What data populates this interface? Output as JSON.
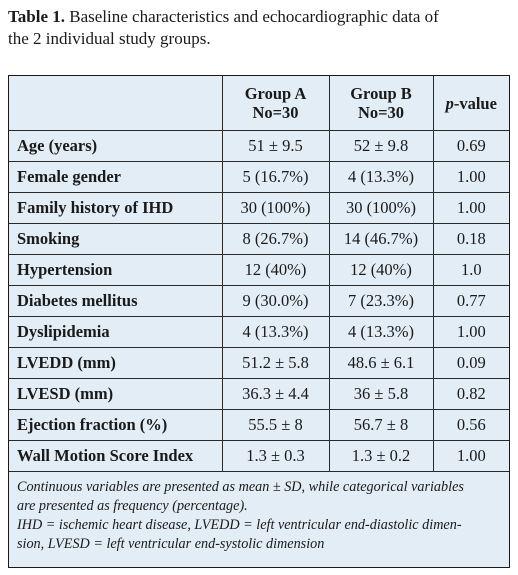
{
  "caption": {
    "label": "Table 1.",
    "text_line1": " Baseline characteristics and echocardiographic data of",
    "text_line2": "the 2 individual study groups."
  },
  "table": {
    "headers": {
      "group_a_line1": "Group A",
      "group_a_line2": "No=30",
      "group_b_line1": "Group B",
      "group_b_line2": "No=30",
      "pvalue_p": "p",
      "pvalue_rest": "-value"
    },
    "rows": [
      {
        "name": "Age (years)",
        "a": "51 ± 9.5",
        "b": "52 ± 9.8",
        "p": "0.69"
      },
      {
        "name": "Female gender",
        "a": "5 (16.7%)",
        "b": "4 (13.3%)",
        "p": "1.00"
      },
      {
        "name": "Family history of IHD",
        "a": "30 (100%)",
        "b": "30 (100%)",
        "p": "1.00"
      },
      {
        "name": "Smoking",
        "a": "8 (26.7%)",
        "b": "14 (46.7%)",
        "p": "0.18"
      },
      {
        "name": "Hypertension",
        "a": "12 (40%)",
        "b": "12 (40%)",
        "p": "1.0"
      },
      {
        "name": "Diabetes mellitus",
        "a": "9 (30.0%)",
        "b": "7 (23.3%)",
        "p": "0.77"
      },
      {
        "name": "Dyslipidemia",
        "a": "4 (13.3%)",
        "b": "4 (13.3%)",
        "p": "1.00"
      },
      {
        "name": "LVEDD (mm)",
        "a": "51.2 ± 5.8",
        "b": "48.6 ± 6.1",
        "p": "0.09"
      },
      {
        "name": "LVESD (mm)",
        "a": "36.3 ± 4.4",
        "b": "36 ± 5.8",
        "p": "0.82"
      },
      {
        "name": "Ejection fraction (%)",
        "a": "55.5 ± 8",
        "b": "56.7 ± 8",
        "p": "0.56"
      },
      {
        "name": "Wall Motion Score Index",
        "a": "1.3 ± 0.3",
        "b": "1.3 ± 0.2",
        "p": "1.00"
      }
    ],
    "footnote": {
      "line1": "Continuous variables are presented as mean ± SD, while categorical variables",
      "line2": "are presented as frequency (percentage).",
      "line3": "IHD = ischemic heart disease, LVEDD = left ventricular end-diastolic dimen-",
      "line4": "sion, LVESD = left ventricular end-systolic dimension"
    }
  }
}
